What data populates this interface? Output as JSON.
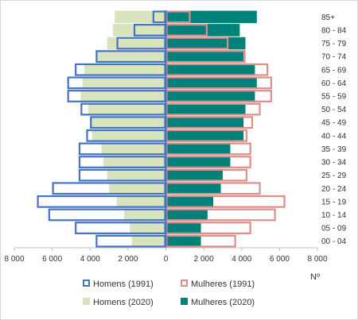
{
  "chart_data": {
    "type": "bar",
    "orientation": "horizontal",
    "subtype": "population-pyramid",
    "categories": [
      "00 - 04",
      "05 - 09",
      "10 - 14",
      "15 - 19",
      "20 - 24",
      "25 - 29",
      "30 - 34",
      "35 - 39",
      "40 - 44",
      "45 - 49",
      "50 - 54",
      "55 - 59",
      "60 - 64",
      "65 - 69",
      "70 - 74",
      "75 - 79",
      "80 - 84",
      "85+"
    ],
    "xlabel": "Nº",
    "xlim": [
      -8000,
      8000
    ],
    "xticks": [
      -8000,
      -6000,
      -4000,
      -2000,
      0,
      2000,
      4000,
      6000,
      8000
    ],
    "xtick_labels": [
      "8 000",
      "6 000",
      "4 000",
      "2 000",
      "0",
      "2 000",
      "4 000",
      "6 000",
      "8 000"
    ],
    "grid": false,
    "legend_position": "bottom",
    "series": [
      {
        "name": "Homens (1991)",
        "side": "left",
        "style": "outline",
        "color": "#4472c4",
        "values": [
          3700,
          4800,
          6200,
          6800,
          6000,
          4600,
          4600,
          4600,
          4200,
          4000,
          4500,
          5200,
          5200,
          4800,
          3700,
          2600,
          1700,
          700
        ]
      },
      {
        "name": "Mulheres (1991)",
        "side": "right",
        "style": "outline",
        "color": "#e08d8a",
        "values": [
          3700,
          4500,
          5800,
          6300,
          5000,
          4300,
          4500,
          4500,
          4300,
          4600,
          5000,
          5600,
          5600,
          5400,
          4200,
          3300,
          2200,
          1300
        ]
      },
      {
        "name": "Homens (2020)",
        "side": "left",
        "style": "fill",
        "color": "#d8e4bc",
        "values": [
          1800,
          1900,
          2200,
          2600,
          3000,
          3100,
          3300,
          3400,
          3900,
          4000,
          4100,
          4500,
          4400,
          4300,
          3700,
          3100,
          2800,
          2700
        ]
      },
      {
        "name": "Mulheres (2020)",
        "side": "right",
        "style": "fill",
        "color": "#00827a",
        "values": [
          1850,
          1850,
          2200,
          2500,
          2900,
          3000,
          3400,
          3400,
          4100,
          4100,
          4200,
          4700,
          4800,
          4700,
          4100,
          4200,
          3900,
          4800
        ]
      }
    ]
  }
}
